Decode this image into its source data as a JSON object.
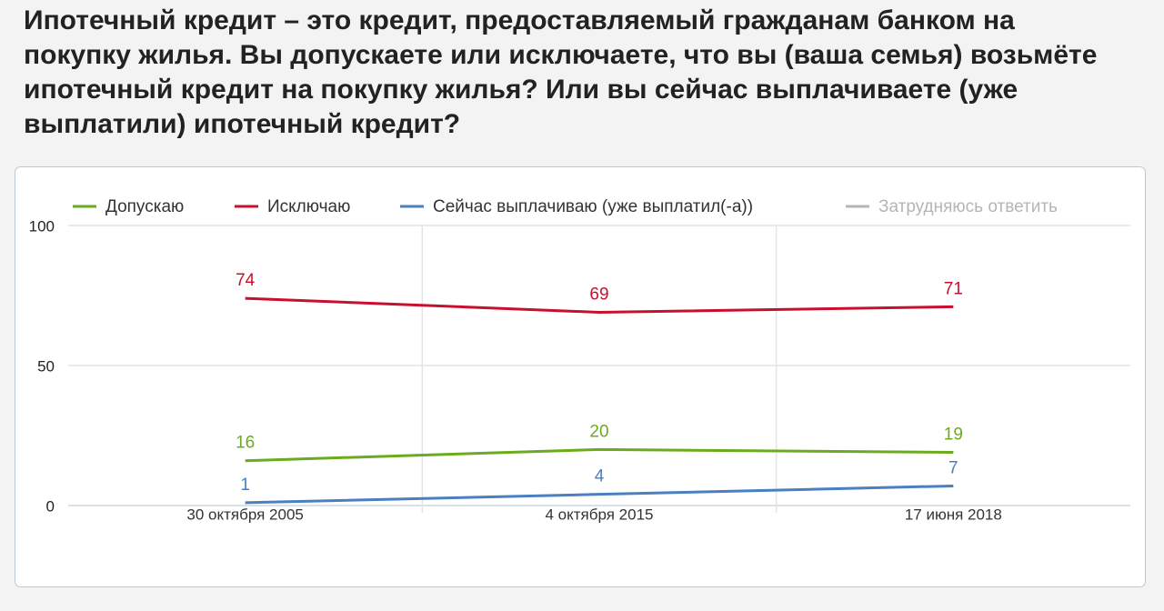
{
  "chart_data": {
    "type": "line",
    "title": "Ипотечный кредит – это кредит, предоставляемый гражданам банком на покупку жилья. Вы допускаете или исключаете, что вы (ваша семья) возьмёте ипотечный кредит на покупку жилья? Или вы сейчас выплачиваете (уже выплатили) ипотечный кредит?",
    "categories": [
      "30 октября 2005",
      "4 октября 2015",
      "17 июня 2018"
    ],
    "series": [
      {
        "name": "Допускаю",
        "color": "#6aab1f",
        "values": [
          16,
          20,
          19
        ]
      },
      {
        "name": "Исключаю",
        "color": "#c8102e",
        "values": [
          74,
          69,
          71
        ]
      },
      {
        "name": "Сейчас выплачиваю (уже выплатил(-а))",
        "color": "#4a7fc0",
        "values": [
          1,
          4,
          7
        ]
      },
      {
        "name": "Затрудняюсь ответить",
        "color": "#b5b5b5",
        "values": [
          null,
          null,
          null
        ],
        "visible": false
      }
    ],
    "ylim": [
      0,
      100
    ],
    "yticks": [
      0,
      50,
      100
    ],
    "grid": true,
    "legend": "top"
  }
}
